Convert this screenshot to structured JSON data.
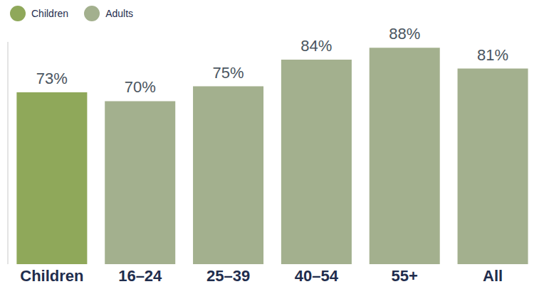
{
  "chart_data": {
    "type": "bar",
    "categories": [
      "Children",
      "16–24",
      "25–39",
      "40–54",
      "55+",
      "All"
    ],
    "series": [
      {
        "name": "Children",
        "color": "#8fa85a",
        "values": [
          73,
          null,
          null,
          null,
          null,
          null
        ],
        "value_labels": [
          "73%",
          null,
          null,
          null,
          null,
          null
        ]
      },
      {
        "name": "Adults",
        "color": "#a3b08e",
        "values": [
          null,
          70,
          75,
          84,
          88,
          81
        ],
        "value_labels": [
          null,
          "70%",
          "75%",
          "84%",
          "88%",
          "81%"
        ]
      }
    ],
    "stacked": true,
    "ylim": [
      15,
      90
    ],
    "data_labels": true,
    "tick_labels": "x",
    "grid": false,
    "legend": "top-left"
  }
}
